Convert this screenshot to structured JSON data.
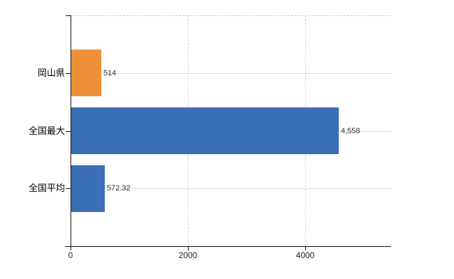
{
  "chart_data": {
    "type": "bar",
    "orientation": "horizontal",
    "title": "",
    "xlabel": "",
    "ylabel": "",
    "categories": [
      "岡山県",
      "全国最大",
      "全国平均"
    ],
    "values": [
      514,
      4558,
      572.32
    ],
    "value_labels": [
      "514",
      "4,558",
      "572.32"
    ],
    "bar_colors": [
      "#ee9038",
      "#3b6fb5",
      "#3b6fb5"
    ],
    "x_axis": {
      "ticks": [
        0,
        2000,
        4000
      ],
      "tick_labels": [
        "0",
        "2000",
        "4000"
      ],
      "min": 0,
      "max": 5464
    },
    "grid": {
      "horizontal": true,
      "vertical": true,
      "top_border_dashed": true
    },
    "legend": null
  },
  "style": {
    "background": "#ffffff",
    "bar_color_highlight": "#ee9038",
    "bar_color_default": "#3b6fb5",
    "axis_color": "#111111",
    "grid_color": "#d9ddd9",
    "value_label_color": "#333333",
    "tick_label_color": "#222222"
  }
}
